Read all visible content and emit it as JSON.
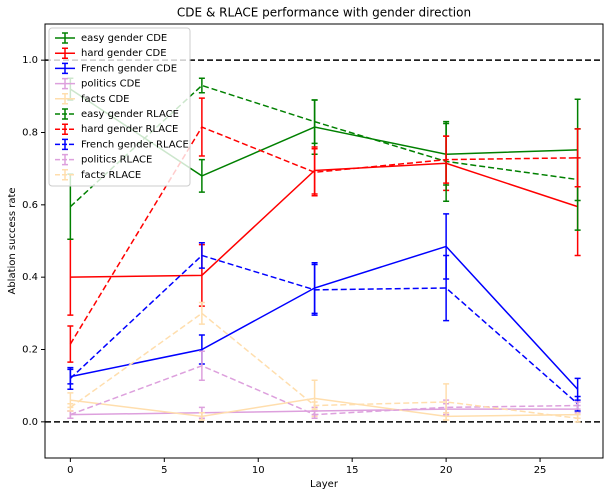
{
  "chart_data": {
    "type": "line",
    "title": "CDE & RLACE performance with gender direction",
    "x_label": "Layer",
    "y_label": "Ablation success rate",
    "x": [
      0,
      7,
      13,
      20,
      27
    ],
    "xlim": [
      -1.35,
      28.35
    ],
    "ylim": [
      -0.1,
      1.1
    ],
    "xticks": [
      0,
      5,
      10,
      15,
      20,
      25
    ],
    "yticks": [
      {
        "value": 0,
        "label": "0.0"
      },
      0.2,
      0.4,
      0.6,
      0.8,
      {
        "value": 1,
        "label": "1.0"
      }
    ],
    "reference_lines": [
      0,
      1
    ],
    "legend": "upper left",
    "series": [
      {
        "name": "easy gender CDE",
        "color": "green",
        "linestyle": "solid",
        "values": [
          0.92,
          0.68,
          0.815,
          0.74,
          0.752
        ],
        "errors": [
          0.03,
          0.045,
          0.075,
          0.085,
          0.14
        ]
      },
      {
        "name": "hard gender CDE",
        "color": "red",
        "linestyle": "solid",
        "values": [
          0.4,
          0.405,
          0.695,
          0.715,
          0.595
        ],
        "errors": [
          0.105,
          0.085,
          0.065,
          0.075,
          0.135
        ]
      },
      {
        "name": "French gender CDE",
        "color": "blue",
        "linestyle": "solid",
        "values": [
          0.125,
          0.2,
          0.37,
          0.485,
          0.09
        ],
        "errors": [
          0.02,
          0.04,
          0.07,
          0.09,
          0.03
        ]
      },
      {
        "name": "politics CDE",
        "color": "plum",
        "linestyle": "solid",
        "values": [
          0.02,
          0.025,
          0.03,
          0.035,
          0.035
        ],
        "errors": [
          0.01,
          0.015,
          0.01,
          0.015,
          0.01
        ]
      },
      {
        "name": "facts CDE",
        "color": "navajowhite",
        "linestyle": "solid",
        "values": [
          0.06,
          0.015,
          0.065,
          0.015,
          0.02
        ],
        "errors": [
          0.02,
          0.01,
          0.05,
          0.01,
          0.01
        ]
      },
      {
        "name": "easy gender RLACE",
        "color": "green",
        "linestyle": "dashed",
        "values": [
          0.595,
          0.93,
          0.83,
          0.72,
          0.67
        ],
        "errors": [
          0.09,
          0.02,
          0.06,
          0.11,
          0.14
        ]
      },
      {
        "name": "hard gender RLACE",
        "color": "red",
        "linestyle": "dashed",
        "values": [
          0.215,
          0.815,
          0.69,
          0.725,
          0.73
        ],
        "errors": [
          0.05,
          0.08,
          0.065,
          0.065,
          0.08
        ]
      },
      {
        "name": "French gender RLACE",
        "color": "blue",
        "linestyle": "dashed",
        "values": [
          0.12,
          0.46,
          0.365,
          0.37,
          0.05
        ],
        "errors": [
          0.03,
          0.035,
          0.07,
          0.09,
          0.02
        ]
      },
      {
        "name": "politics RLACE",
        "color": "plum",
        "linestyle": "dashed",
        "values": [
          0.02,
          0.155,
          0.02,
          0.04,
          0.045
        ],
        "errors": [
          0.01,
          0.04,
          0.01,
          0.02,
          0.01
        ]
      },
      {
        "name": "facts RLACE",
        "color": "navajowhite",
        "linestyle": "dashed",
        "values": [
          0.04,
          0.3,
          0.045,
          0.055,
          0.01
        ],
        "errors": [
          0.01,
          0.03,
          0.01,
          0.05,
          0.01
        ]
      }
    ]
  }
}
